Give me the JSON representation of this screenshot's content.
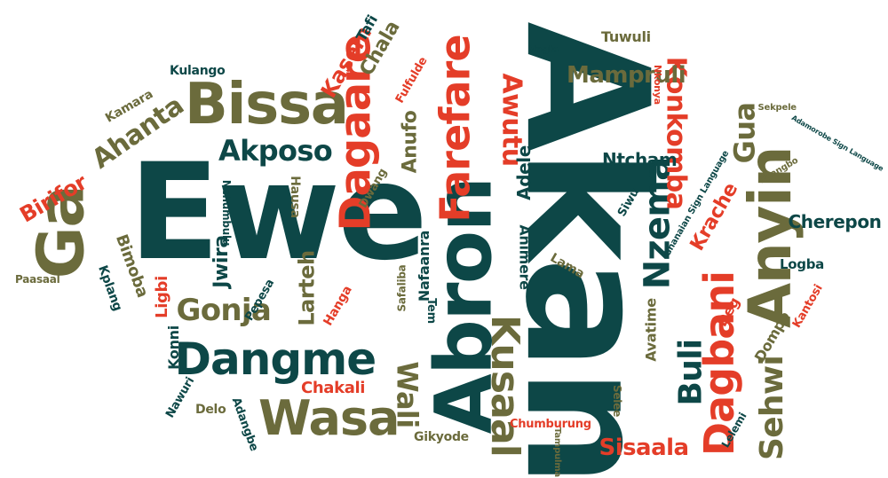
{
  "palette": {
    "teal": "#0d4747",
    "olive": "#6b6b3c",
    "red": "#e43d28"
  },
  "words": [
    {
      "text": "Akan",
      "color": "teal"
    },
    {
      "text": "Ewe",
      "color": "teal"
    },
    {
      "text": "Abron",
      "color": "teal"
    },
    {
      "text": "Ga",
      "color": "olive"
    },
    {
      "text": "Anyin",
      "color": "olive"
    },
    {
      "text": "Bissa",
      "color": "olive"
    },
    {
      "text": "Dagaare",
      "color": "red"
    },
    {
      "text": "Farefare",
      "color": "red"
    },
    {
      "text": "Dangme",
      "color": "teal"
    },
    {
      "text": "Wasa",
      "color": "olive"
    },
    {
      "text": "Kusaal",
      "color": "olive"
    },
    {
      "text": "Dagbani",
      "color": "red"
    },
    {
      "text": "Nzema",
      "color": "teal"
    },
    {
      "text": "Gonja",
      "color": "olive"
    },
    {
      "text": "Sehwi",
      "color": "olive"
    },
    {
      "text": "Buli",
      "color": "teal"
    },
    {
      "text": "Akposo",
      "color": "teal"
    },
    {
      "text": "Konkomba",
      "color": "red"
    },
    {
      "text": "Mampruli",
      "color": "olive"
    },
    {
      "text": "Gua",
      "color": "olive"
    },
    {
      "text": "Awutu",
      "color": "red"
    },
    {
      "text": "Ahanta",
      "color": "olive"
    },
    {
      "text": "Wali",
      "color": "olive"
    },
    {
      "text": "Sisaala",
      "color": "red"
    },
    {
      "text": "Birifor",
      "color": "red"
    },
    {
      "text": "Kasem",
      "color": "red"
    },
    {
      "text": "Chala",
      "color": "olive"
    },
    {
      "text": "Anufo",
      "color": "olive"
    },
    {
      "text": "Adele",
      "color": "teal"
    },
    {
      "text": "Ntcham",
      "color": "teal"
    },
    {
      "text": "Krache",
      "color": "red"
    },
    {
      "text": "Cherepon",
      "color": "teal"
    },
    {
      "text": "Larteh",
      "color": "olive"
    },
    {
      "text": "Jwira",
      "color": "teal"
    },
    {
      "text": "Chakali",
      "color": "red"
    },
    {
      "text": "Tuwuli",
      "color": "olive"
    },
    {
      "text": "Kamara",
      "color": "olive"
    },
    {
      "text": "Kulango",
      "color": "teal"
    },
    {
      "text": "Tafi",
      "color": "teal"
    },
    {
      "text": "Fulfulde",
      "color": "red"
    },
    {
      "text": "Vagla",
      "color": "teal"
    },
    {
      "text": "Nkonya",
      "color": "red"
    },
    {
      "text": "Sekpele",
      "color": "olive"
    },
    {
      "text": "Adamorobe Sign Language",
      "color": "teal"
    },
    {
      "text": "Nyangbo",
      "color": "olive"
    },
    {
      "text": "Hausa",
      "color": "olive"
    },
    {
      "text": "Dwang",
      "color": "olive"
    },
    {
      "text": "Nchumbulu",
      "color": "teal"
    },
    {
      "text": "Bimoba",
      "color": "olive"
    },
    {
      "text": "Kplang",
      "color": "teal"
    },
    {
      "text": "Paasaal",
      "color": "olive"
    },
    {
      "text": "Ligbi",
      "color": "red"
    },
    {
      "text": "Pepesa",
      "color": "teal"
    },
    {
      "text": "Hanga",
      "color": "red"
    },
    {
      "text": "Safaliba",
      "color": "olive"
    },
    {
      "text": "Nafaanra",
      "color": "teal"
    },
    {
      "text": "Tem",
      "color": "teal"
    },
    {
      "text": "Animere",
      "color": "teal"
    },
    {
      "text": "Lama",
      "color": "olive"
    },
    {
      "text": "Siwu",
      "color": "teal"
    },
    {
      "text": "Ghanaian Sign Language",
      "color": "teal"
    },
    {
      "text": "Logba",
      "color": "teal"
    },
    {
      "text": "Kantosi",
      "color": "red"
    },
    {
      "text": "Deg",
      "color": "red"
    },
    {
      "text": "Dompo",
      "color": "olive"
    },
    {
      "text": "Avatime",
      "color": "olive"
    },
    {
      "text": "Konni",
      "color": "teal"
    },
    {
      "text": "Nawuri",
      "color": "teal"
    },
    {
      "text": "Delo",
      "color": "olive"
    },
    {
      "text": "Adangbe",
      "color": "teal"
    },
    {
      "text": "Gikyode",
      "color": "olive"
    },
    {
      "text": "Chumburung",
      "color": "red"
    },
    {
      "text": "Tampulma",
      "color": "olive"
    },
    {
      "text": "Selee",
      "color": "olive"
    },
    {
      "text": "Lelemi",
      "color": "teal"
    }
  ]
}
